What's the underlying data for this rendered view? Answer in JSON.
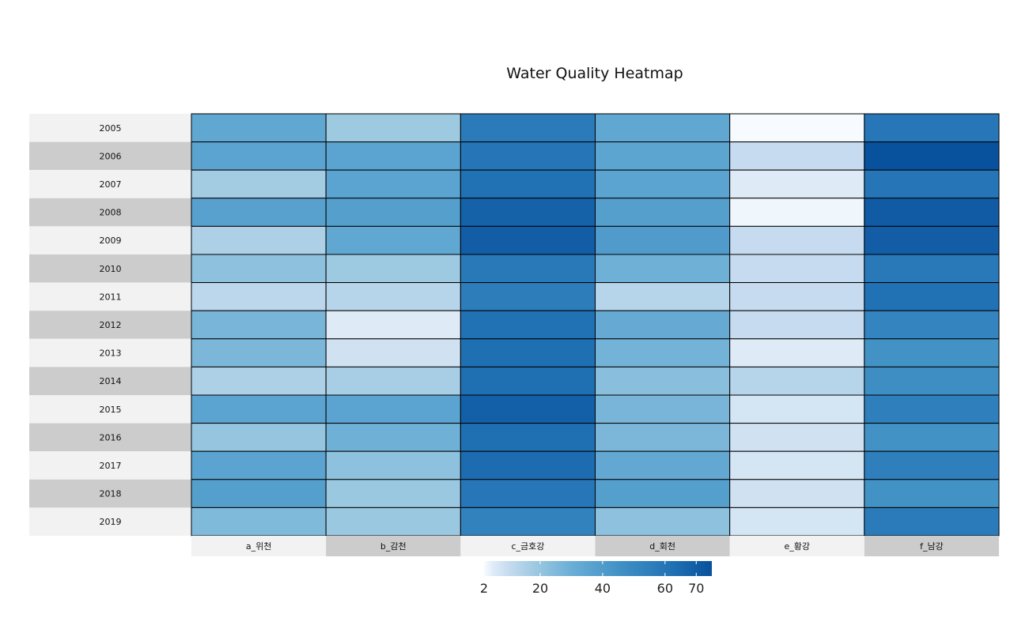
{
  "chart_data": {
    "type": "heatmap",
    "title": "Water Quality Heatmap",
    "columns": [
      "a_위천",
      "b_감천",
      "c_금호강",
      "d_회천",
      "e_황강",
      "f_남강"
    ],
    "rows": [
      "2005",
      "2006",
      "2007",
      "2008",
      "2009",
      "2010",
      "2011",
      "2012",
      "2013",
      "2014",
      "2015",
      "2016",
      "2017",
      "2018",
      "2019"
    ],
    "values": [
      [
        34,
        18,
        57,
        34,
        2,
        59
      ],
      [
        36,
        36,
        60,
        35,
        10,
        76
      ],
      [
        17,
        36,
        62,
        36,
        5,
        60
      ],
      [
        37,
        38,
        68,
        38,
        3,
        71
      ],
      [
        15,
        34,
        70,
        40,
        10,
        70
      ],
      [
        22,
        18,
        58,
        29,
        10,
        58
      ],
      [
        12,
        13,
        56,
        13,
        10,
        62
      ],
      [
        27,
        5,
        62,
        32,
        10,
        52
      ],
      [
        26,
        8,
        63,
        28,
        5,
        45
      ],
      [
        15,
        16,
        63,
        23,
        13,
        47
      ],
      [
        36,
        36,
        69,
        27,
        7,
        55
      ],
      [
        20,
        29,
        63,
        26,
        8,
        45
      ],
      [
        36,
        22,
        64,
        33,
        7,
        55
      ],
      [
        38,
        19,
        59,
        38,
        8,
        45
      ],
      [
        25,
        19,
        53,
        22,
        7,
        57
      ]
    ],
    "scale": {
      "min": 2,
      "max": 75,
      "ticks": [
        2,
        20,
        40,
        60,
        70
      ],
      "colors": [
        "#f7fbff",
        "#deebf7",
        "#c6dbef",
        "#9ecae1",
        "#6baed6",
        "#4292c6",
        "#2171b5",
        "#08519c"
      ],
      "stops": [
        2,
        5,
        10,
        18,
        30,
        45,
        62,
        75
      ]
    },
    "legend_position": "bottom"
  }
}
